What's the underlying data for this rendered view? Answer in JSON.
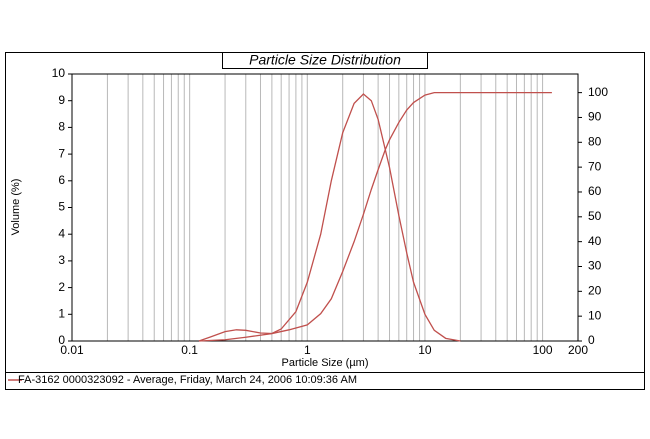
{
  "chart_data": {
    "type": "line",
    "title": "Particle Size Distribution",
    "x_label": "Particle Size (µm)",
    "y_label": "Volume (%)",
    "xscale": "log",
    "xlim": [
      0.01,
      200
    ],
    "xticks": [
      0.01,
      0.1,
      1,
      10,
      100,
      200
    ],
    "xminorticks": [
      0.02,
      0.03,
      0.04,
      0.05,
      0.06,
      0.07,
      0.08,
      0.09,
      0.2,
      0.3,
      0.4,
      0.5,
      0.6,
      0.7,
      0.8,
      0.9,
      2,
      3,
      4,
      5,
      6,
      7,
      8,
      9,
      20,
      30,
      40,
      50,
      60,
      70,
      80,
      90
    ],
    "ylim": [
      0,
      10
    ],
    "yticks": [
      0,
      1,
      2,
      3,
      4,
      5,
      6,
      7,
      8,
      9,
      10
    ],
    "y2lim": [
      0,
      107.5
    ],
    "y2ticks": [
      0,
      10,
      20,
      30,
      40,
      50,
      60,
      70,
      80,
      90,
      100
    ],
    "grid": true,
    "series": [
      {
        "name": "FA-3162 0000323092 - Average, Friday, March 24, 2006 10:09:36 AM",
        "color": "#c0504d",
        "x": [
          0.12,
          0.15,
          0.2,
          0.25,
          0.3,
          0.4,
          0.5,
          0.6,
          0.8,
          1,
          1.3,
          1.6,
          2,
          2.5,
          3,
          3.5,
          4,
          5,
          6,
          7,
          8,
          10,
          12,
          15,
          20
        ],
        "values": [
          0,
          0.15,
          0.35,
          0.42,
          0.4,
          0.3,
          0.28,
          0.45,
          1.1,
          2.2,
          4,
          6,
          7.8,
          8.9,
          9.25,
          9.0,
          8.3,
          6.5,
          4.7,
          3.3,
          2.2,
          1.0,
          0.4,
          0.1,
          0
        ]
      },
      {
        "color": "#c0504d",
        "axis": "y2",
        "x": [
          0.12,
          0.2,
          0.3,
          0.5,
          0.7,
          1,
          1.3,
          1.6,
          2,
          2.5,
          3,
          3.5,
          4,
          4.6,
          5,
          6,
          7,
          8,
          10,
          12,
          20,
          120
        ],
        "values": [
          0,
          0.5,
          1.5,
          3,
          4.5,
          6.5,
          11,
          17,
          28,
          40,
          51,
          61,
          69,
          77,
          81,
          88,
          93,
          96,
          99,
          100,
          100,
          100
        ]
      }
    ]
  }
}
